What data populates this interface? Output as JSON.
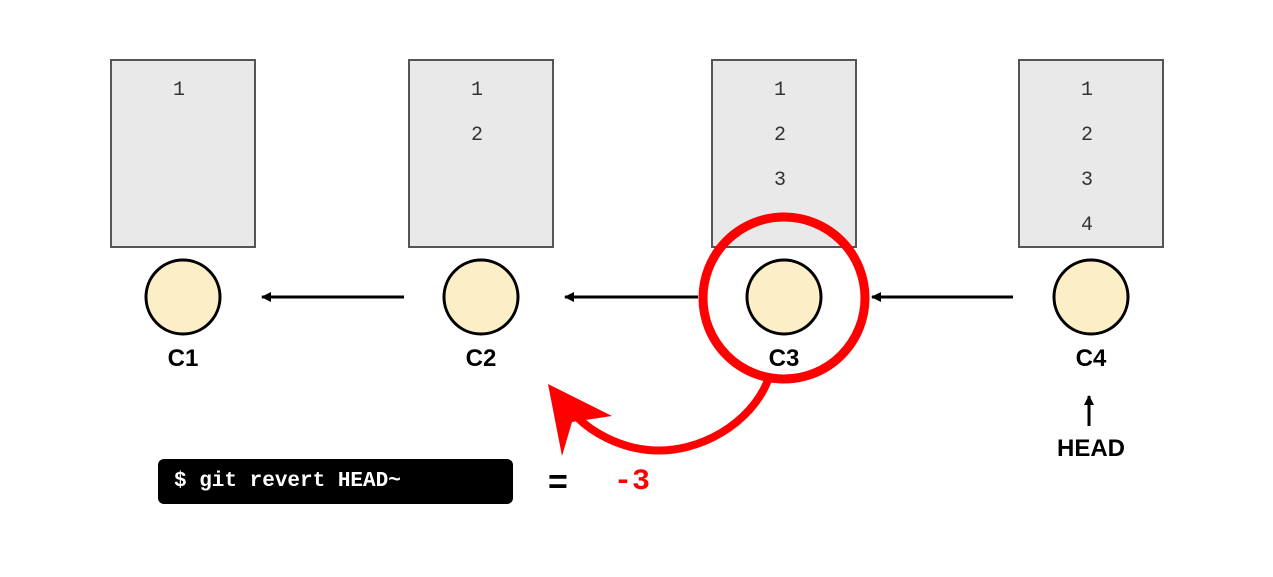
{
  "colors": {
    "file_fill": "#e9e9e9",
    "file_stroke": "#555555",
    "commit_fill": "#fcefc7",
    "commit_stroke": "#000000",
    "highlight": "#ff0000",
    "arrow": "#000000"
  },
  "commits": [
    {
      "label": "C1",
      "lines": [
        "1"
      ]
    },
    {
      "label": "C2",
      "lines": [
        "1",
        "2"
      ]
    },
    {
      "label": "C3",
      "lines": [
        "1",
        "2",
        "3"
      ]
    },
    {
      "label": "C4",
      "lines": [
        "1",
        "2",
        "3",
        "4"
      ]
    }
  ],
  "head_label": "HEAD",
  "command": "$ git revert HEAD~",
  "equals": "=",
  "result": "-3"
}
